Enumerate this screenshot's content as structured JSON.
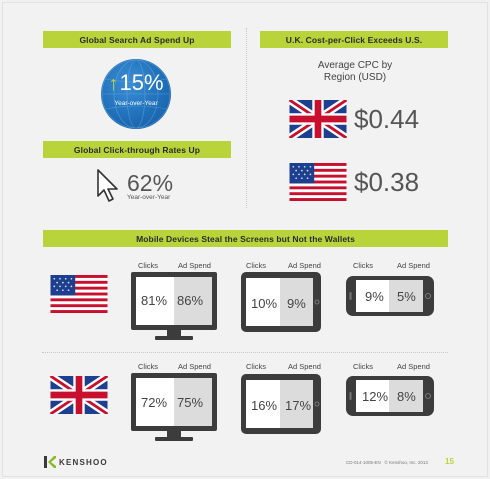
{
  "banners": {
    "global_search": "Global Search Ad Spend Up",
    "uk_cpc": "U.K. Cost-per-Click Exceeds U.S.",
    "ctr": "Global Click-through Rates Up",
    "mobile": "Mobile Devices Steal the Screens but Not the Wallets"
  },
  "search_spend": {
    "value": "15%",
    "label": "Year-over-Year"
  },
  "ctr": {
    "value": "62%",
    "label": "Year-over-Year"
  },
  "cpc": {
    "subtitle_line1": "Average CPC by",
    "subtitle_line2": "Region (USD)",
    "uk_value": "$0.44",
    "us_value": "$0.38"
  },
  "devices": {
    "clicks_label": "Clicks",
    "ad_spend_label": "Ad Spend",
    "us": {
      "desktop": {
        "clicks": "81%",
        "ad_spend": "86%"
      },
      "tablet": {
        "clicks": "10%",
        "ad_spend": "9%"
      },
      "phone": {
        "clicks": "9%",
        "ad_spend": "5%"
      }
    },
    "uk": {
      "desktop": {
        "clicks": "72%",
        "ad_spend": "75%"
      },
      "tablet": {
        "clicks": "16%",
        "ad_spend": "17%"
      },
      "phone": {
        "clicks": "12%",
        "ad_spend": "8%"
      }
    }
  },
  "footer": {
    "brand": "KENSHOO",
    "code": "CD-014-1005-EN",
    "copyright": "© Kenshoo, Inc. 2013",
    "page": "15"
  },
  "colors": {
    "accent": "#b9d43a",
    "globe": "#1f6fb9",
    "device": "#3c3c3c"
  }
}
